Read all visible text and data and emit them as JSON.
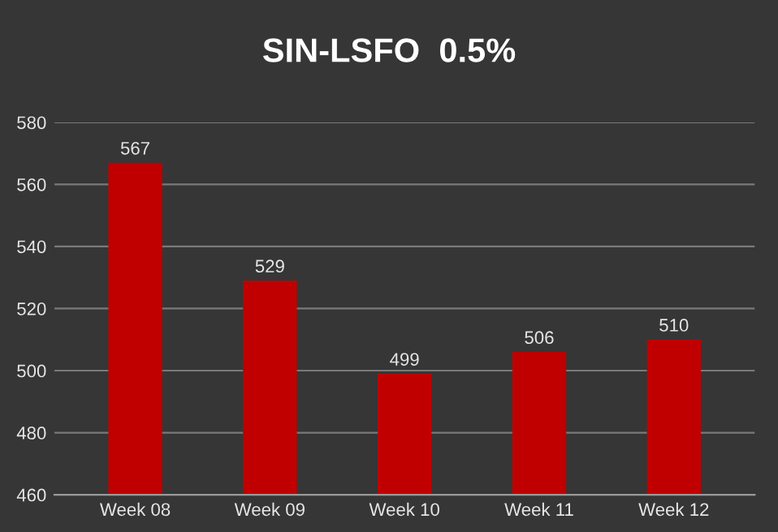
{
  "chart_data": {
    "type": "bar",
    "title": "SIN-LSFO  0.5%",
    "categories": [
      "Week 08",
      "Week 09",
      "Week 10",
      "Week 11",
      "Week 12"
    ],
    "values": [
      567,
      529,
      499,
      506,
      510
    ],
    "color": "#c00000",
    "ylim": [
      460,
      580
    ],
    "yticks": [
      460,
      480,
      500,
      520,
      540,
      560,
      580
    ],
    "grid": "y",
    "data_labels": true
  }
}
